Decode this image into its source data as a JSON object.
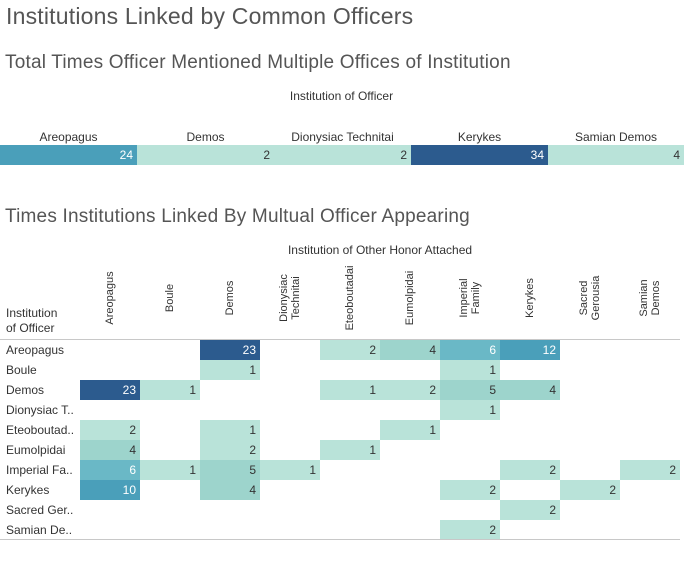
{
  "title": "Institutions Linked by Common Officers",
  "colors": {
    "scale": [
      "#b9e3d9",
      "#9dd4cc",
      "#6ab8c6",
      "#4a9fba",
      "#2c5b8e"
    ]
  },
  "chart_data": [
    {
      "type": "bar",
      "title": "Total Times Officer Mentioned Multiple Offices of Institution",
      "column_header": "Institution of Officer",
      "categories": [
        "Areopagus",
        "Demos",
        "Dionysiac Technitai",
        "Kerykes",
        "Samian Demos"
      ],
      "values": [
        24,
        2,
        2,
        34,
        4
      ]
    },
    {
      "type": "heatmap",
      "title": "Times Institutions Linked By Multual Officer Appearing",
      "column_header": "Institution of Other Honor Attached",
      "row_header": "Institution\nof Officer",
      "columns": [
        "Areopagus",
        "Boule",
        "Demos",
        "Dionysiac\nTechnitai",
        "Eteoboutadai",
        "Eumolpidai",
        "Imperial\nFamily",
        "Kerykes",
        "Sacred\nGerousia",
        "Samian\nDemos"
      ],
      "rows": [
        "Areopagus",
        "Boule",
        "Demos",
        "Dionysiac T..",
        "Eteoboutad..",
        "Eumolpidai",
        "Imperial Fa..",
        "Kerykes",
        "Sacred Ger..",
        "Samian De.."
      ],
      "values": [
        [
          null,
          null,
          23,
          null,
          2,
          4,
          6,
          12,
          null,
          null
        ],
        [
          null,
          null,
          1,
          null,
          null,
          null,
          1,
          null,
          null,
          null
        ],
        [
          23,
          1,
          null,
          null,
          1,
          2,
          5,
          4,
          null,
          null
        ],
        [
          null,
          null,
          null,
          null,
          null,
          null,
          1,
          null,
          null,
          null
        ],
        [
          2,
          null,
          1,
          null,
          null,
          1,
          null,
          null,
          null,
          null
        ],
        [
          4,
          null,
          2,
          null,
          1,
          null,
          null,
          null,
          null,
          null
        ],
        [
          6,
          1,
          5,
          1,
          null,
          null,
          null,
          2,
          null,
          2
        ],
        [
          10,
          null,
          4,
          null,
          null,
          null,
          2,
          null,
          2,
          null
        ],
        [
          null,
          null,
          null,
          null,
          null,
          null,
          null,
          2,
          null,
          null
        ],
        [
          null,
          null,
          null,
          null,
          null,
          null,
          2,
          null,
          null,
          null
        ]
      ]
    }
  ]
}
